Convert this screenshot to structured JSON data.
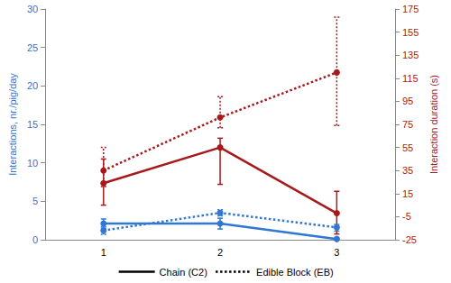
{
  "chart_data": {
    "type": "line",
    "categories": [
      "1",
      "2",
      "3"
    ],
    "ylabel": "Interactions, nr./pig/day",
    "ylim": [
      0,
      30
    ],
    "yticks": [
      0,
      5,
      10,
      15,
      20,
      25,
      30
    ],
    "y2label": "Interaction duration (s)",
    "y2lim": [
      -25,
      175
    ],
    "y2ticks": [
      -25,
      -5,
      15,
      35,
      55,
      75,
      95,
      115,
      135,
      155,
      175
    ],
    "grid": false,
    "legend": "bottom",
    "series": [
      {
        "name": "Chain (C2)",
        "axis": "y",
        "color": "#2f77d2",
        "line_style": "solid",
        "marker": "circle",
        "values": [
          2.1,
          2.1,
          0.1
        ],
        "error_low": [
          1.5,
          1.4,
          0.1
        ],
        "error_high": [
          2.7,
          2.8,
          0.1
        ]
      },
      {
        "name": "Edible Block (EB)",
        "axis": "y",
        "color": "#2f77d2",
        "line_style": "dotted",
        "marker": "circle",
        "values": [
          1.2,
          3.5,
          1.6
        ],
        "error_low": [
          0.7,
          3.1,
          1.1
        ],
        "error_high": [
          1.7,
          3.9,
          2.0
        ]
      },
      {
        "name": "Chain (C2)",
        "axis": "y2",
        "color": "#a8191c",
        "line_style": "solid",
        "marker": "circle",
        "values": [
          24,
          55,
          -2
        ],
        "error_low": [
          5,
          23,
          -20
        ],
        "error_high": [
          45,
          63,
          17
        ]
      },
      {
        "name": "Edible Block (EB)",
        "axis": "y2",
        "color": "#a8191c",
        "line_style": "dotted",
        "marker": "circle",
        "values": [
          35,
          81,
          120
        ],
        "error_low": [
          21,
          72,
          74
        ],
        "error_high": [
          55,
          99,
          168
        ]
      }
    ]
  }
}
